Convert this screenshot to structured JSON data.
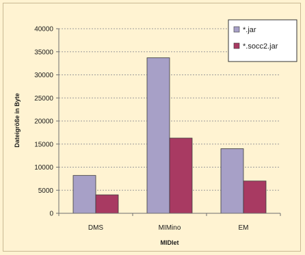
{
  "chart_data": {
    "type": "bar",
    "title": "",
    "xlabel": "MIDlet",
    "ylabel": "Dateigröße in Byte",
    "categories": [
      "DMS",
      "MIMino",
      "EM"
    ],
    "ylim": [
      0,
      40000
    ],
    "yticks": [
      0,
      5000,
      10000,
      15000,
      20000,
      25000,
      30000,
      35000,
      40000
    ],
    "grid": true,
    "legend_position": "top-right",
    "series": [
      {
        "name": "*.jar",
        "values": [
          8200,
          33700,
          14000
        ],
        "color": "#a7a0c7"
      },
      {
        "name": "*.socc2.jar",
        "values": [
          4000,
          16300,
          7000
        ],
        "color": "#a83a62"
      }
    ]
  }
}
